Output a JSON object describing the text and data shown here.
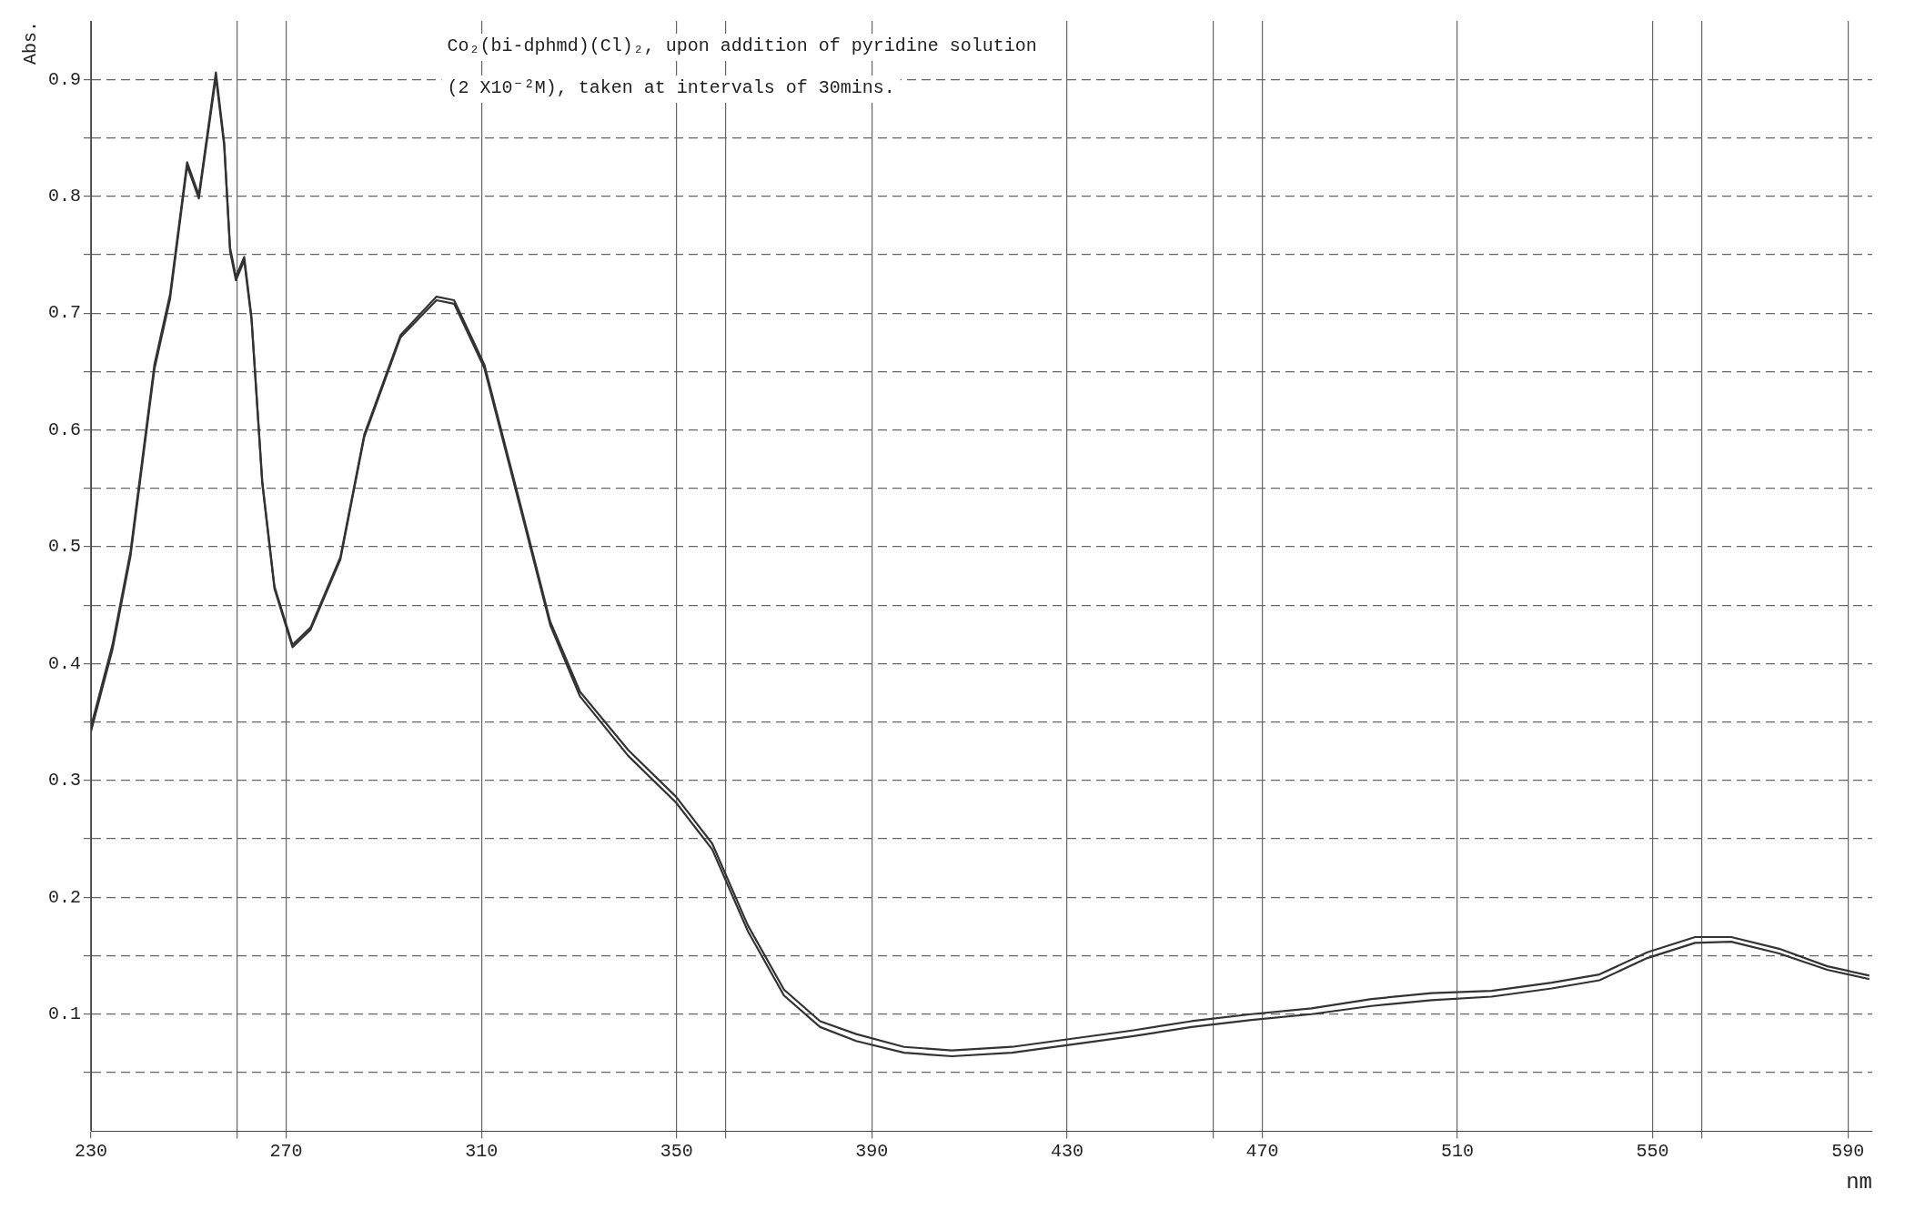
{
  "chart_data": {
    "type": "line",
    "xlabel": "nm",
    "ylabel": "Abs.",
    "annotations": [
      "Co₂(bi-dphmd)(Cl)₂, upon addition of pyridine solution",
      "(2 X10⁻²M), taken at intervals of 30mins."
    ],
    "xlim": [
      230,
      595
    ],
    "ylim": [
      0,
      0.95
    ],
    "xticks": [
      230,
      {
        "value": 260,
        "label": null
      },
      270,
      310,
      350,
      {
        "value": 360,
        "label": null
      },
      390,
      430,
      {
        "value": 460,
        "label": null
      },
      470,
      510,
      550,
      {
        "value": 560,
        "label": null
      },
      590
    ],
    "yticks": [
      {
        "value": 0.05,
        "label": null
      },
      0.1,
      {
        "value": 0.15,
        "label": null
      },
      0.2,
      {
        "value": 0.25,
        "label": null
      },
      0.3,
      {
        "value": 0.35,
        "label": null
      },
      0.4,
      {
        "value": 0.45,
        "label": null
      },
      0.5,
      {
        "value": 0.55,
        "label": null
      },
      0.6,
      {
        "value": 0.65,
        "label": null
      },
      0.7,
      {
        "value": 0.75,
        "label": null
      },
      0.8,
      {
        "value": 0.85,
        "label": null
      },
      0.9
    ],
    "grid": true,
    "legend": false,
    "marker": "none",
    "line_style": "solid",
    "series": [
      {
        "color": "#333333",
        "x": [
          230,
          234.4,
          238.1,
          243,
          246.2,
          249.7,
          252.1,
          255.6,
          257.3,
          258.5,
          259.7,
          261.4,
          262.9,
          265.1,
          267.6,
          271.3,
          275,
          281.1,
          286,
          293.4,
          300.8,
          304.4,
          310.6,
          318,
          324.1,
          330.2,
          340.1,
          349.9,
          357.3,
          364.6,
          372,
          379.4,
          386.8,
          396.6,
          406.4,
          418.7,
          431,
          443.3,
          455.5,
          467.8,
          480.1,
          492.4,
          504.7,
          517,
          529.3,
          539.1,
          548.9,
          558.7,
          566.1,
          575.9,
          585.8,
          594.4
        ],
        "values": [
          0.346,
          0.416,
          0.496,
          0.656,
          0.716,
          0.829,
          0.801,
          0.906,
          0.846,
          0.756,
          0.731,
          0.748,
          0.696,
          0.556,
          0.466,
          0.416,
          0.431,
          0.491,
          0.596,
          0.681,
          0.714,
          0.711,
          0.656,
          0.536,
          0.436,
          0.376,
          0.326,
          0.286,
          0.246,
          0.176,
          0.121,
          0.094,
          0.083,
          0.072,
          0.069,
          0.072,
          0.079,
          0.086,
          0.094,
          0.1,
          0.105,
          0.113,
          0.118,
          0.12,
          0.127,
          0.134,
          0.153,
          0.166,
          0.166,
          0.156,
          0.141,
          0.133
        ]
      },
      {
        "color": "#333333",
        "x": [
          230,
          234.4,
          238.1,
          243,
          246.2,
          249.7,
          252.1,
          255.6,
          257.3,
          258.5,
          259.7,
          261.4,
          262.9,
          265.1,
          267.6,
          271.3,
          275,
          281.1,
          286,
          293.4,
          300.8,
          304.4,
          310.6,
          318,
          324.1,
          330.2,
          340.1,
          349.9,
          357.3,
          364.6,
          372,
          379.4,
          386.8,
          396.6,
          406.4,
          418.7,
          431,
          443.3,
          455.5,
          467.8,
          480.1,
          492.4,
          504.7,
          517,
          529.3,
          539.1,
          548.9,
          558.7,
          566.1,
          575.9,
          585.8,
          594.4
        ],
        "values": [
          0.342,
          0.412,
          0.492,
          0.652,
          0.712,
          0.826,
          0.798,
          0.902,
          0.843,
          0.753,
          0.728,
          0.745,
          0.694,
          0.554,
          0.464,
          0.414,
          0.429,
          0.489,
          0.594,
          0.679,
          0.711,
          0.708,
          0.653,
          0.533,
          0.433,
          0.372,
          0.321,
          0.281,
          0.241,
          0.171,
          0.116,
          0.089,
          0.077,
          0.067,
          0.064,
          0.067,
          0.074,
          0.081,
          0.089,
          0.095,
          0.1,
          0.107,
          0.112,
          0.115,
          0.122,
          0.129,
          0.148,
          0.161,
          0.162,
          0.152,
          0.138,
          0.13
        ]
      }
    ]
  }
}
